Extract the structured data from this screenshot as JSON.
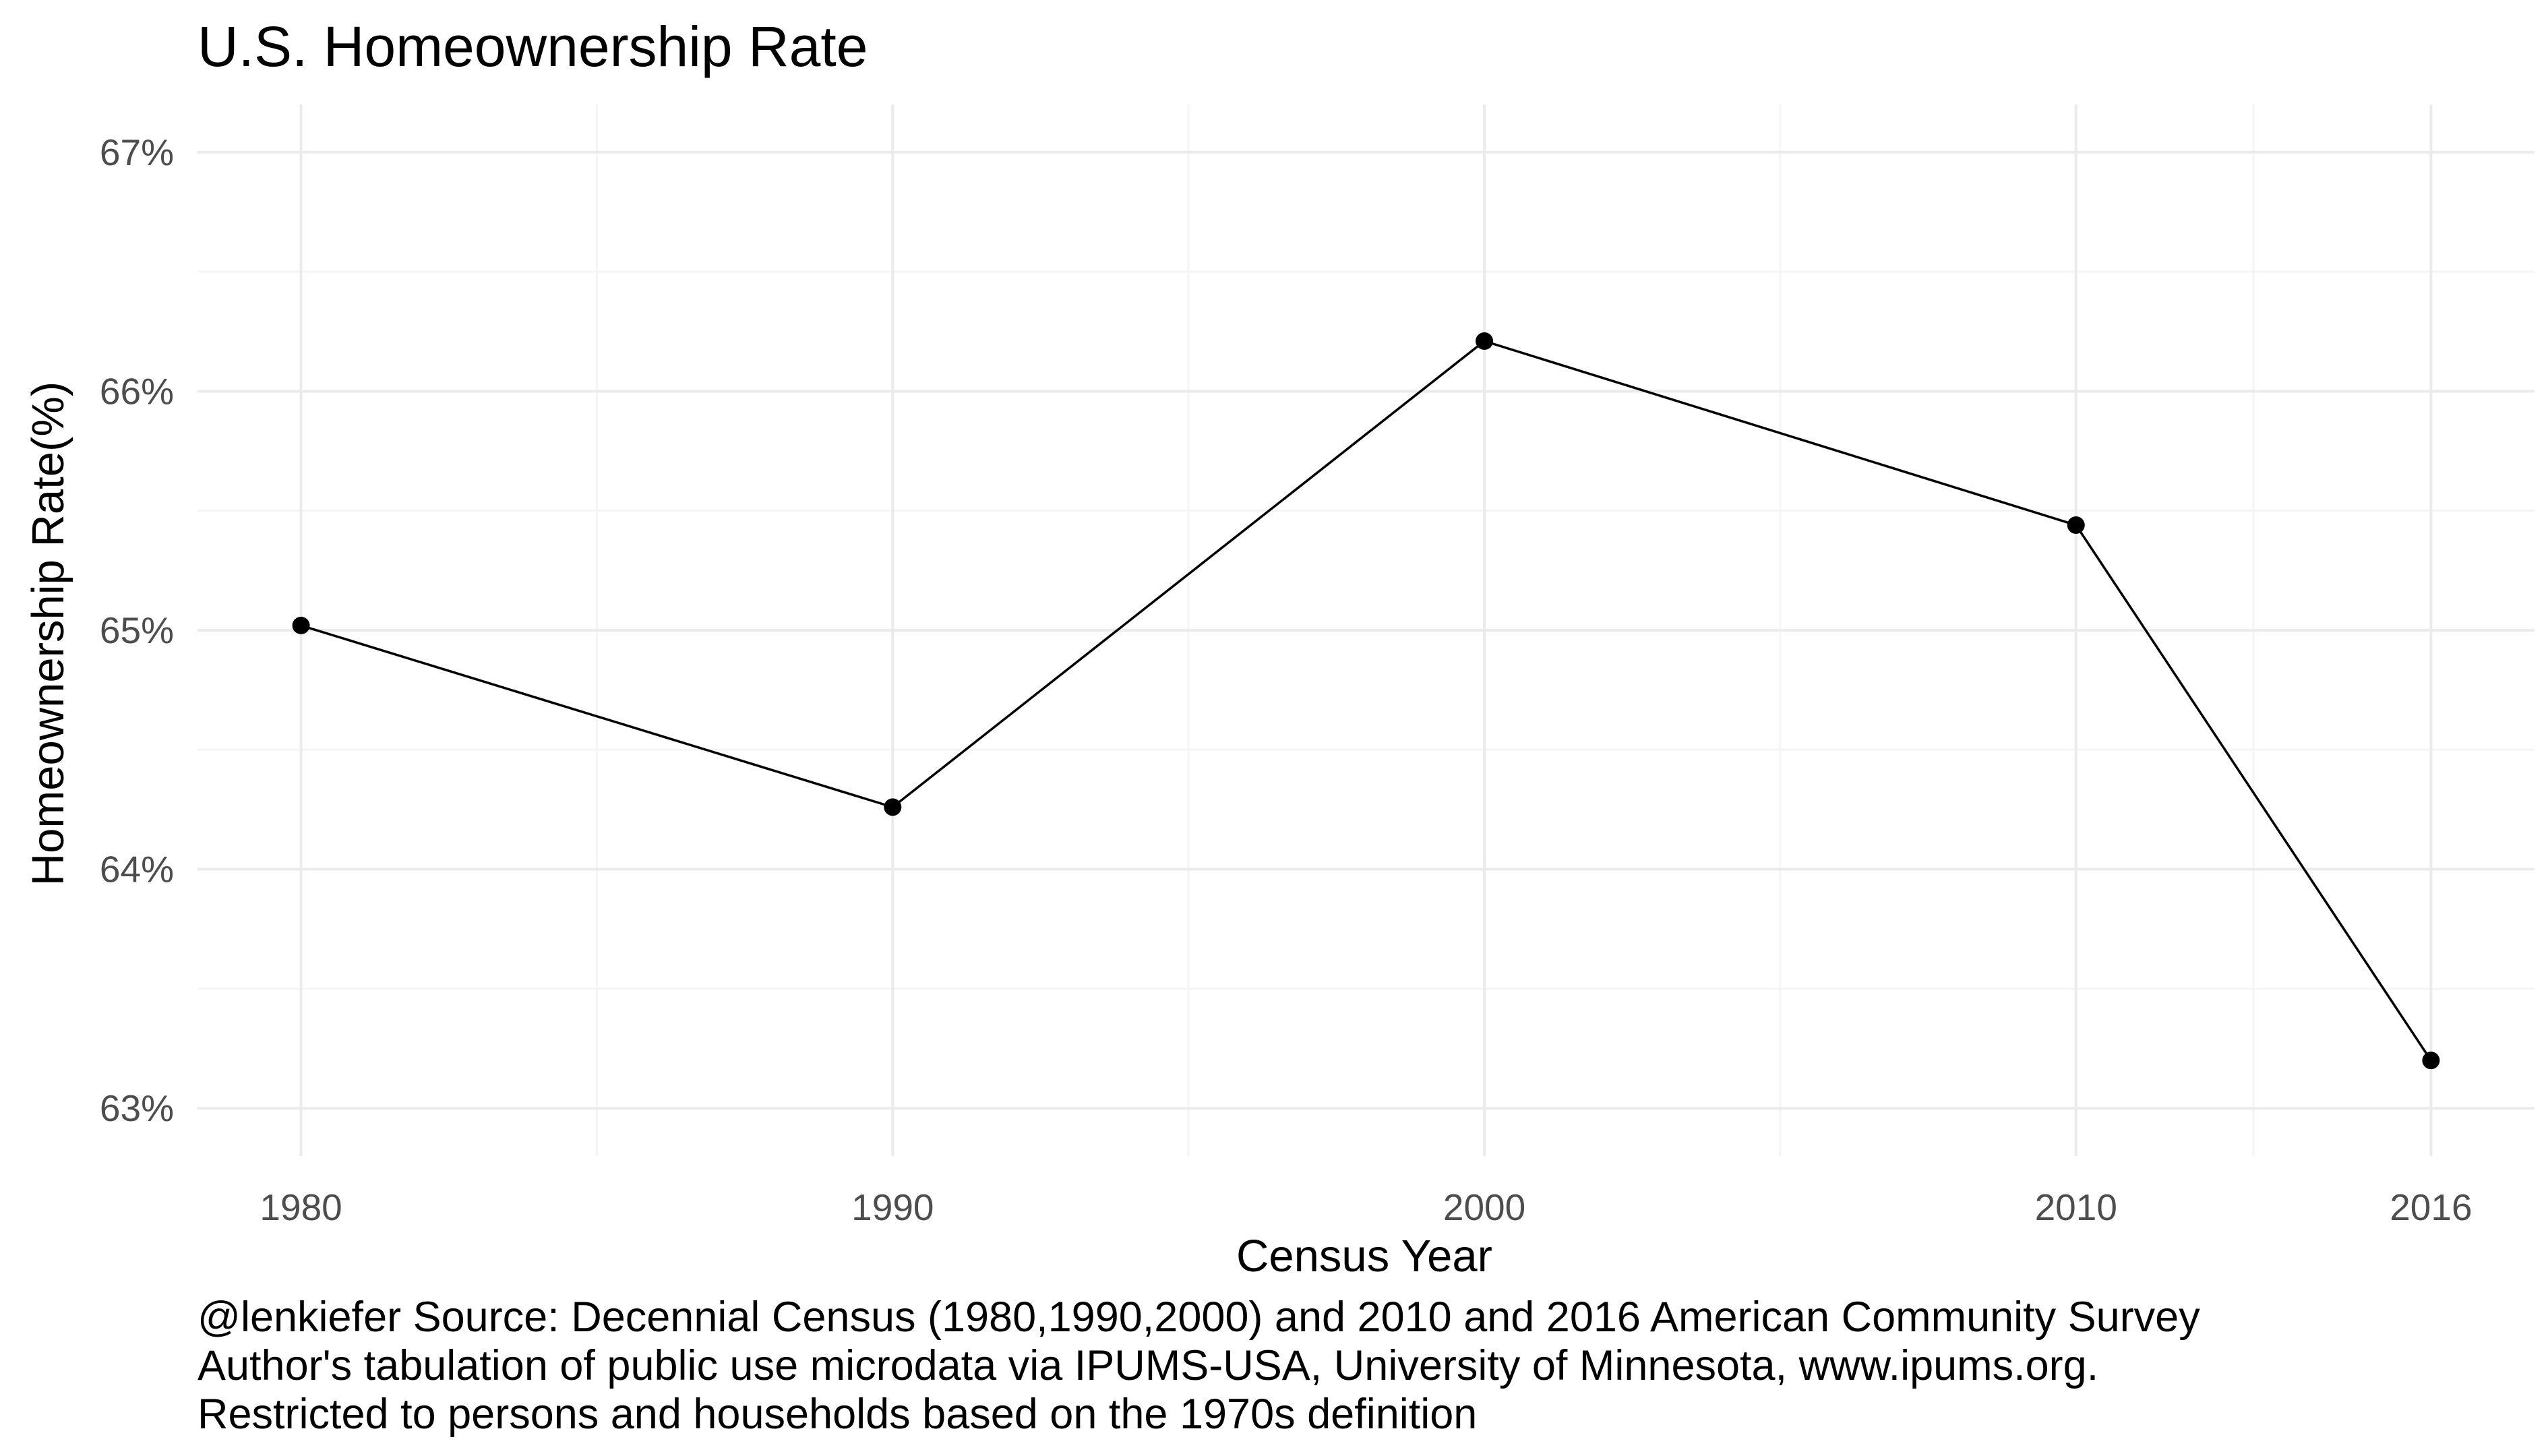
{
  "chart_data": {
    "type": "line",
    "title": "U.S. Homeownership Rate",
    "xlabel": "Census Year",
    "ylabel": "Homeownership Rate(%)",
    "x": [
      1980,
      1990,
      2000,
      2010,
      2016
    ],
    "series": [
      {
        "values": [
          65.02,
          64.26,
          66.21,
          65.44,
          63.2
        ]
      }
    ],
    "x_ticks": [
      1980,
      1990,
      2000,
      2010,
      2016
    ],
    "x_tick_labels": [
      "1980",
      "1990",
      "2000",
      "2010",
      "2016"
    ],
    "y_ticks": [
      63,
      64,
      65,
      66,
      67
    ],
    "y_tick_labels": [
      "63%",
      "64%",
      "65%",
      "66%",
      "67%"
    ],
    "xlim": [
      1978.25,
      2017.75
    ],
    "ylim": [
      62.8,
      67.2
    ],
    "grid": true,
    "markers": true
  },
  "caption": [
    "@lenkiefer Source: Decennial Census (1980,1990,2000) and 2010 and 2016 American Community Survey",
    "Author's tabulation of public use microdata via IPUMS-USA, University of Minnesota, www.ipums.org.",
    "Restricted to persons and households based on the 1970s definition"
  ],
  "colors": {
    "line": "#000000",
    "marker": "#000000",
    "grid_major": "#ebebeb",
    "grid_minor": "#f5f5f5",
    "tick_text": "#4d4d4d"
  }
}
